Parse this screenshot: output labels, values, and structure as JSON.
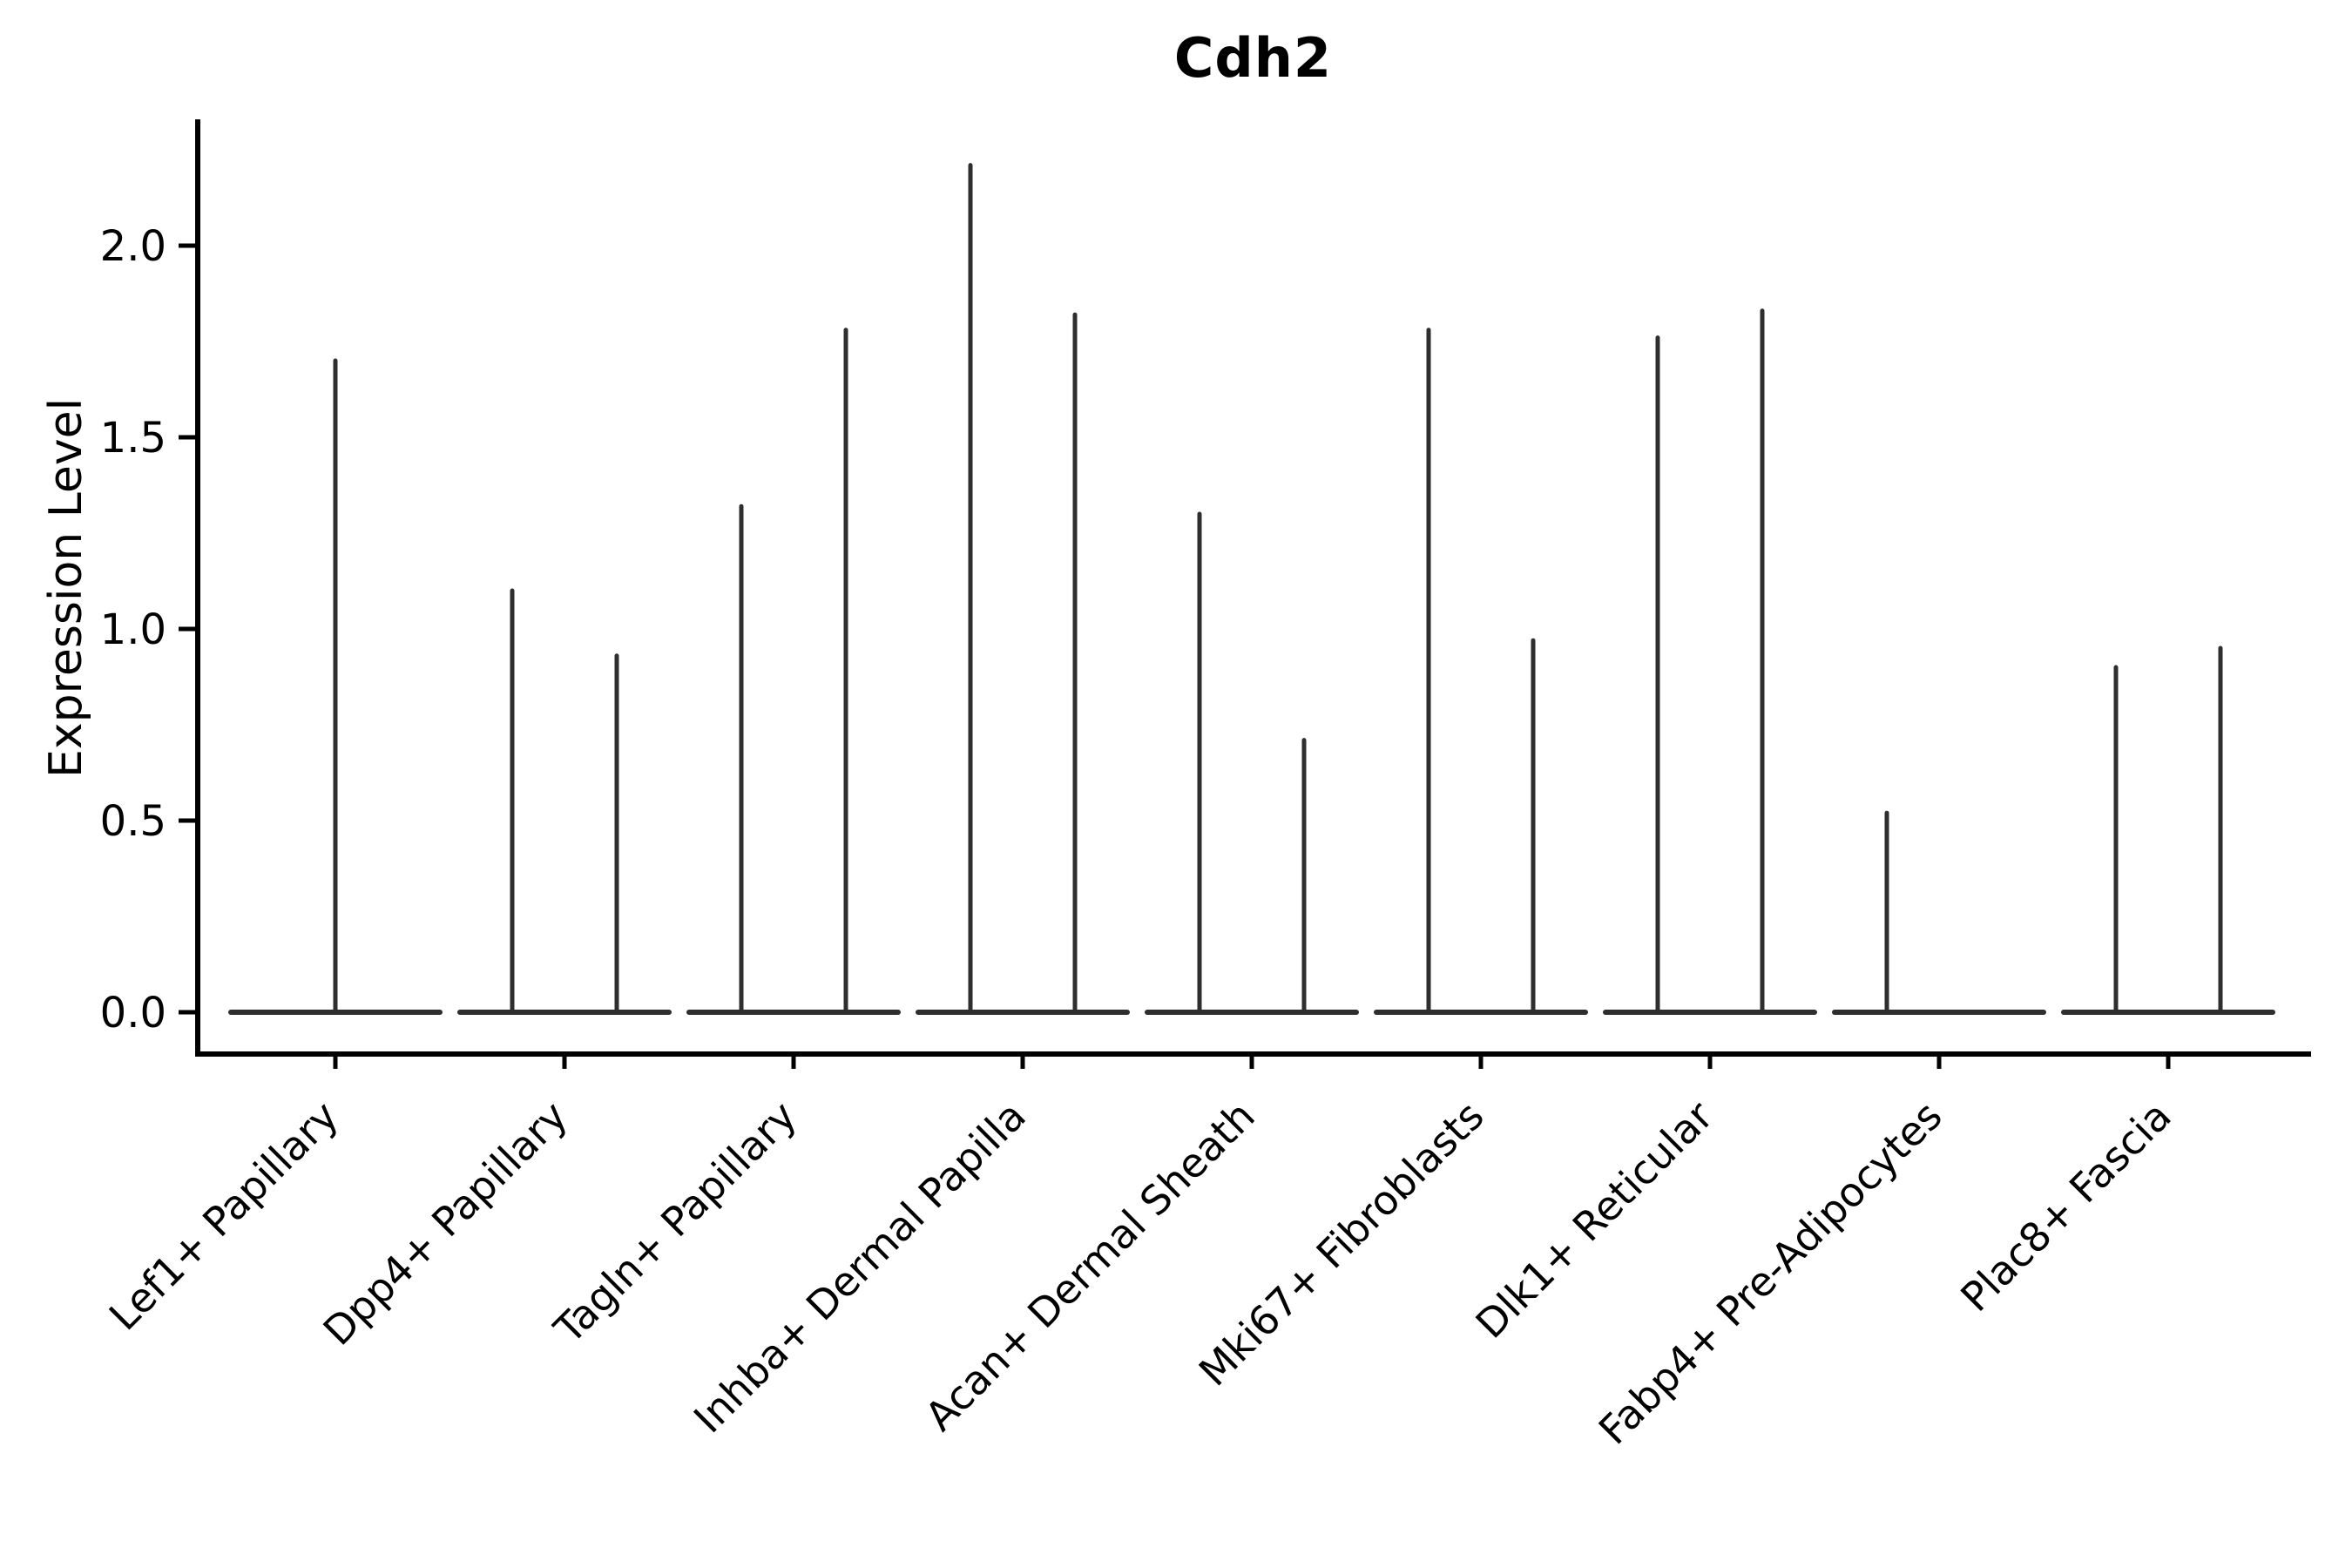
{
  "figure": {
    "title": "Cdh2",
    "ylabel": "Expression Level"
  },
  "chart_data": {
    "type": "violin",
    "title": "Cdh2",
    "xlabel": "",
    "ylabel": "Expression Level",
    "yticks": [
      0.0,
      0.5,
      1.0,
      1.5,
      2.0
    ],
    "ylim": [
      -0.11,
      2.32
    ],
    "grid": false,
    "legend": "none",
    "line_color": "#2e2e2e",
    "categories": [
      "Lef1+ Papillary",
      "Dpp4+ Papillary",
      "Tagln+ Papillary",
      "Inhba+ Dermal Papilla",
      "Acan+ Dermal Sheath",
      "Mki67+ Fibroblasts",
      "Dlk1+ Reticular",
      "Fabp4+ Pre-Adipocytes",
      "Plac8+ Fascia"
    ],
    "violins": [
      {
        "category": "Lef1+ Papillary",
        "spikes": [
          {
            "position": "center",
            "max": 1.7
          }
        ]
      },
      {
        "category": "Dpp4+ Papillary",
        "spikes": [
          {
            "position": "left",
            "max": 1.1
          },
          {
            "position": "right",
            "max": 0.93
          }
        ]
      },
      {
        "category": "Tagln+ Papillary",
        "spikes": [
          {
            "position": "left",
            "max": 1.32
          },
          {
            "position": "right",
            "max": 1.78
          }
        ]
      },
      {
        "category": "Inhba+ Dermal Papilla",
        "spikes": [
          {
            "position": "left",
            "max": 2.21
          },
          {
            "position": "right",
            "max": 1.82
          }
        ]
      },
      {
        "category": "Acan+ Dermal Sheath",
        "spikes": [
          {
            "position": "left",
            "max": 1.3
          },
          {
            "position": "right",
            "max": 0.71
          }
        ]
      },
      {
        "category": "Mki67+ Fibroblasts",
        "spikes": [
          {
            "position": "left",
            "max": 1.78
          },
          {
            "position": "right",
            "max": 0.97
          }
        ]
      },
      {
        "category": "Dlk1+ Reticular",
        "spikes": [
          {
            "position": "left",
            "max": 1.76
          },
          {
            "position": "right",
            "max": 1.83
          }
        ]
      },
      {
        "category": "Fabp4+ Pre-Adipocytes",
        "spikes": [
          {
            "position": "left",
            "max": 0.52
          }
        ]
      },
      {
        "category": "Plac8+ Fascia",
        "spikes": [
          {
            "position": "left",
            "max": 0.9
          },
          {
            "position": "right",
            "max": 0.95
          }
        ]
      }
    ],
    "baseline_value": 0.0
  }
}
